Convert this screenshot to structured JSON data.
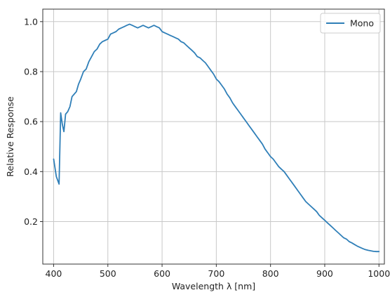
{
  "chart_data": {
    "type": "line",
    "xlabel": "Wavelength λ [nm]",
    "ylabel": "Relative Response",
    "xlim": [
      380,
      1010
    ],
    "ylim": [
      0.03,
      1.05
    ],
    "xticks": [
      400,
      500,
      600,
      700,
      800,
      900,
      1000
    ],
    "xtick_labels": [
      "400",
      "500",
      "600",
      "700",
      "800",
      "900",
      "1000"
    ],
    "yticks": [
      0.2,
      0.4,
      0.6,
      0.8,
      1.0
    ],
    "ytick_labels": [
      "0.2",
      "0.4",
      "0.6",
      "0.8",
      "1.0"
    ],
    "grid": true,
    "legend_position": "top-right",
    "series": [
      {
        "name": "Mono",
        "color": "#2f7fb8",
        "x": [
          400,
          405,
          410,
          413,
          416,
          419,
          422,
          426,
          430,
          434,
          438,
          442,
          446,
          450,
          455,
          460,
          465,
          470,
          475,
          480,
          485,
          490,
          495,
          500,
          505,
          510,
          515,
          520,
          525,
          530,
          535,
          540,
          545,
          550,
          555,
          560,
          565,
          570,
          575,
          580,
          585,
          590,
          595,
          600,
          605,
          610,
          615,
          620,
          625,
          630,
          635,
          640,
          645,
          650,
          655,
          660,
          665,
          670,
          675,
          680,
          685,
          690,
          695,
          700,
          705,
          710,
          715,
          720,
          725,
          730,
          735,
          740,
          745,
          750,
          755,
          760,
          765,
          770,
          775,
          780,
          785,
          790,
          795,
          800,
          805,
          810,
          815,
          820,
          825,
          830,
          835,
          840,
          845,
          850,
          855,
          860,
          865,
          870,
          875,
          880,
          885,
          890,
          895,
          900,
          905,
          910,
          915,
          920,
          925,
          930,
          935,
          940,
          945,
          950,
          955,
          960,
          965,
          970,
          975,
          980,
          985,
          990,
          995,
          1000
        ],
        "y": [
          0.45,
          0.38,
          0.35,
          0.635,
          0.59,
          0.56,
          0.63,
          0.64,
          0.66,
          0.7,
          0.71,
          0.72,
          0.75,
          0.77,
          0.8,
          0.81,
          0.84,
          0.86,
          0.88,
          0.89,
          0.91,
          0.92,
          0.925,
          0.93,
          0.95,
          0.955,
          0.96,
          0.97,
          0.975,
          0.98,
          0.985,
          0.99,
          0.985,
          0.98,
          0.975,
          0.98,
          0.985,
          0.98,
          0.975,
          0.98,
          0.985,
          0.98,
          0.975,
          0.96,
          0.955,
          0.95,
          0.945,
          0.94,
          0.935,
          0.93,
          0.92,
          0.915,
          0.905,
          0.895,
          0.885,
          0.875,
          0.86,
          0.855,
          0.845,
          0.835,
          0.82,
          0.805,
          0.79,
          0.77,
          0.76,
          0.745,
          0.73,
          0.71,
          0.695,
          0.675,
          0.66,
          0.645,
          0.63,
          0.615,
          0.6,
          0.585,
          0.57,
          0.555,
          0.54,
          0.525,
          0.51,
          0.49,
          0.475,
          0.46,
          0.45,
          0.435,
          0.42,
          0.41,
          0.4,
          0.385,
          0.37,
          0.355,
          0.34,
          0.325,
          0.31,
          0.295,
          0.28,
          0.27,
          0.26,
          0.25,
          0.24,
          0.225,
          0.215,
          0.205,
          0.195,
          0.185,
          0.175,
          0.165,
          0.155,
          0.145,
          0.135,
          0.13,
          0.12,
          0.115,
          0.108,
          0.102,
          0.097,
          0.092,
          0.088,
          0.085,
          0.083,
          0.081,
          0.08,
          0.08
        ]
      }
    ]
  }
}
